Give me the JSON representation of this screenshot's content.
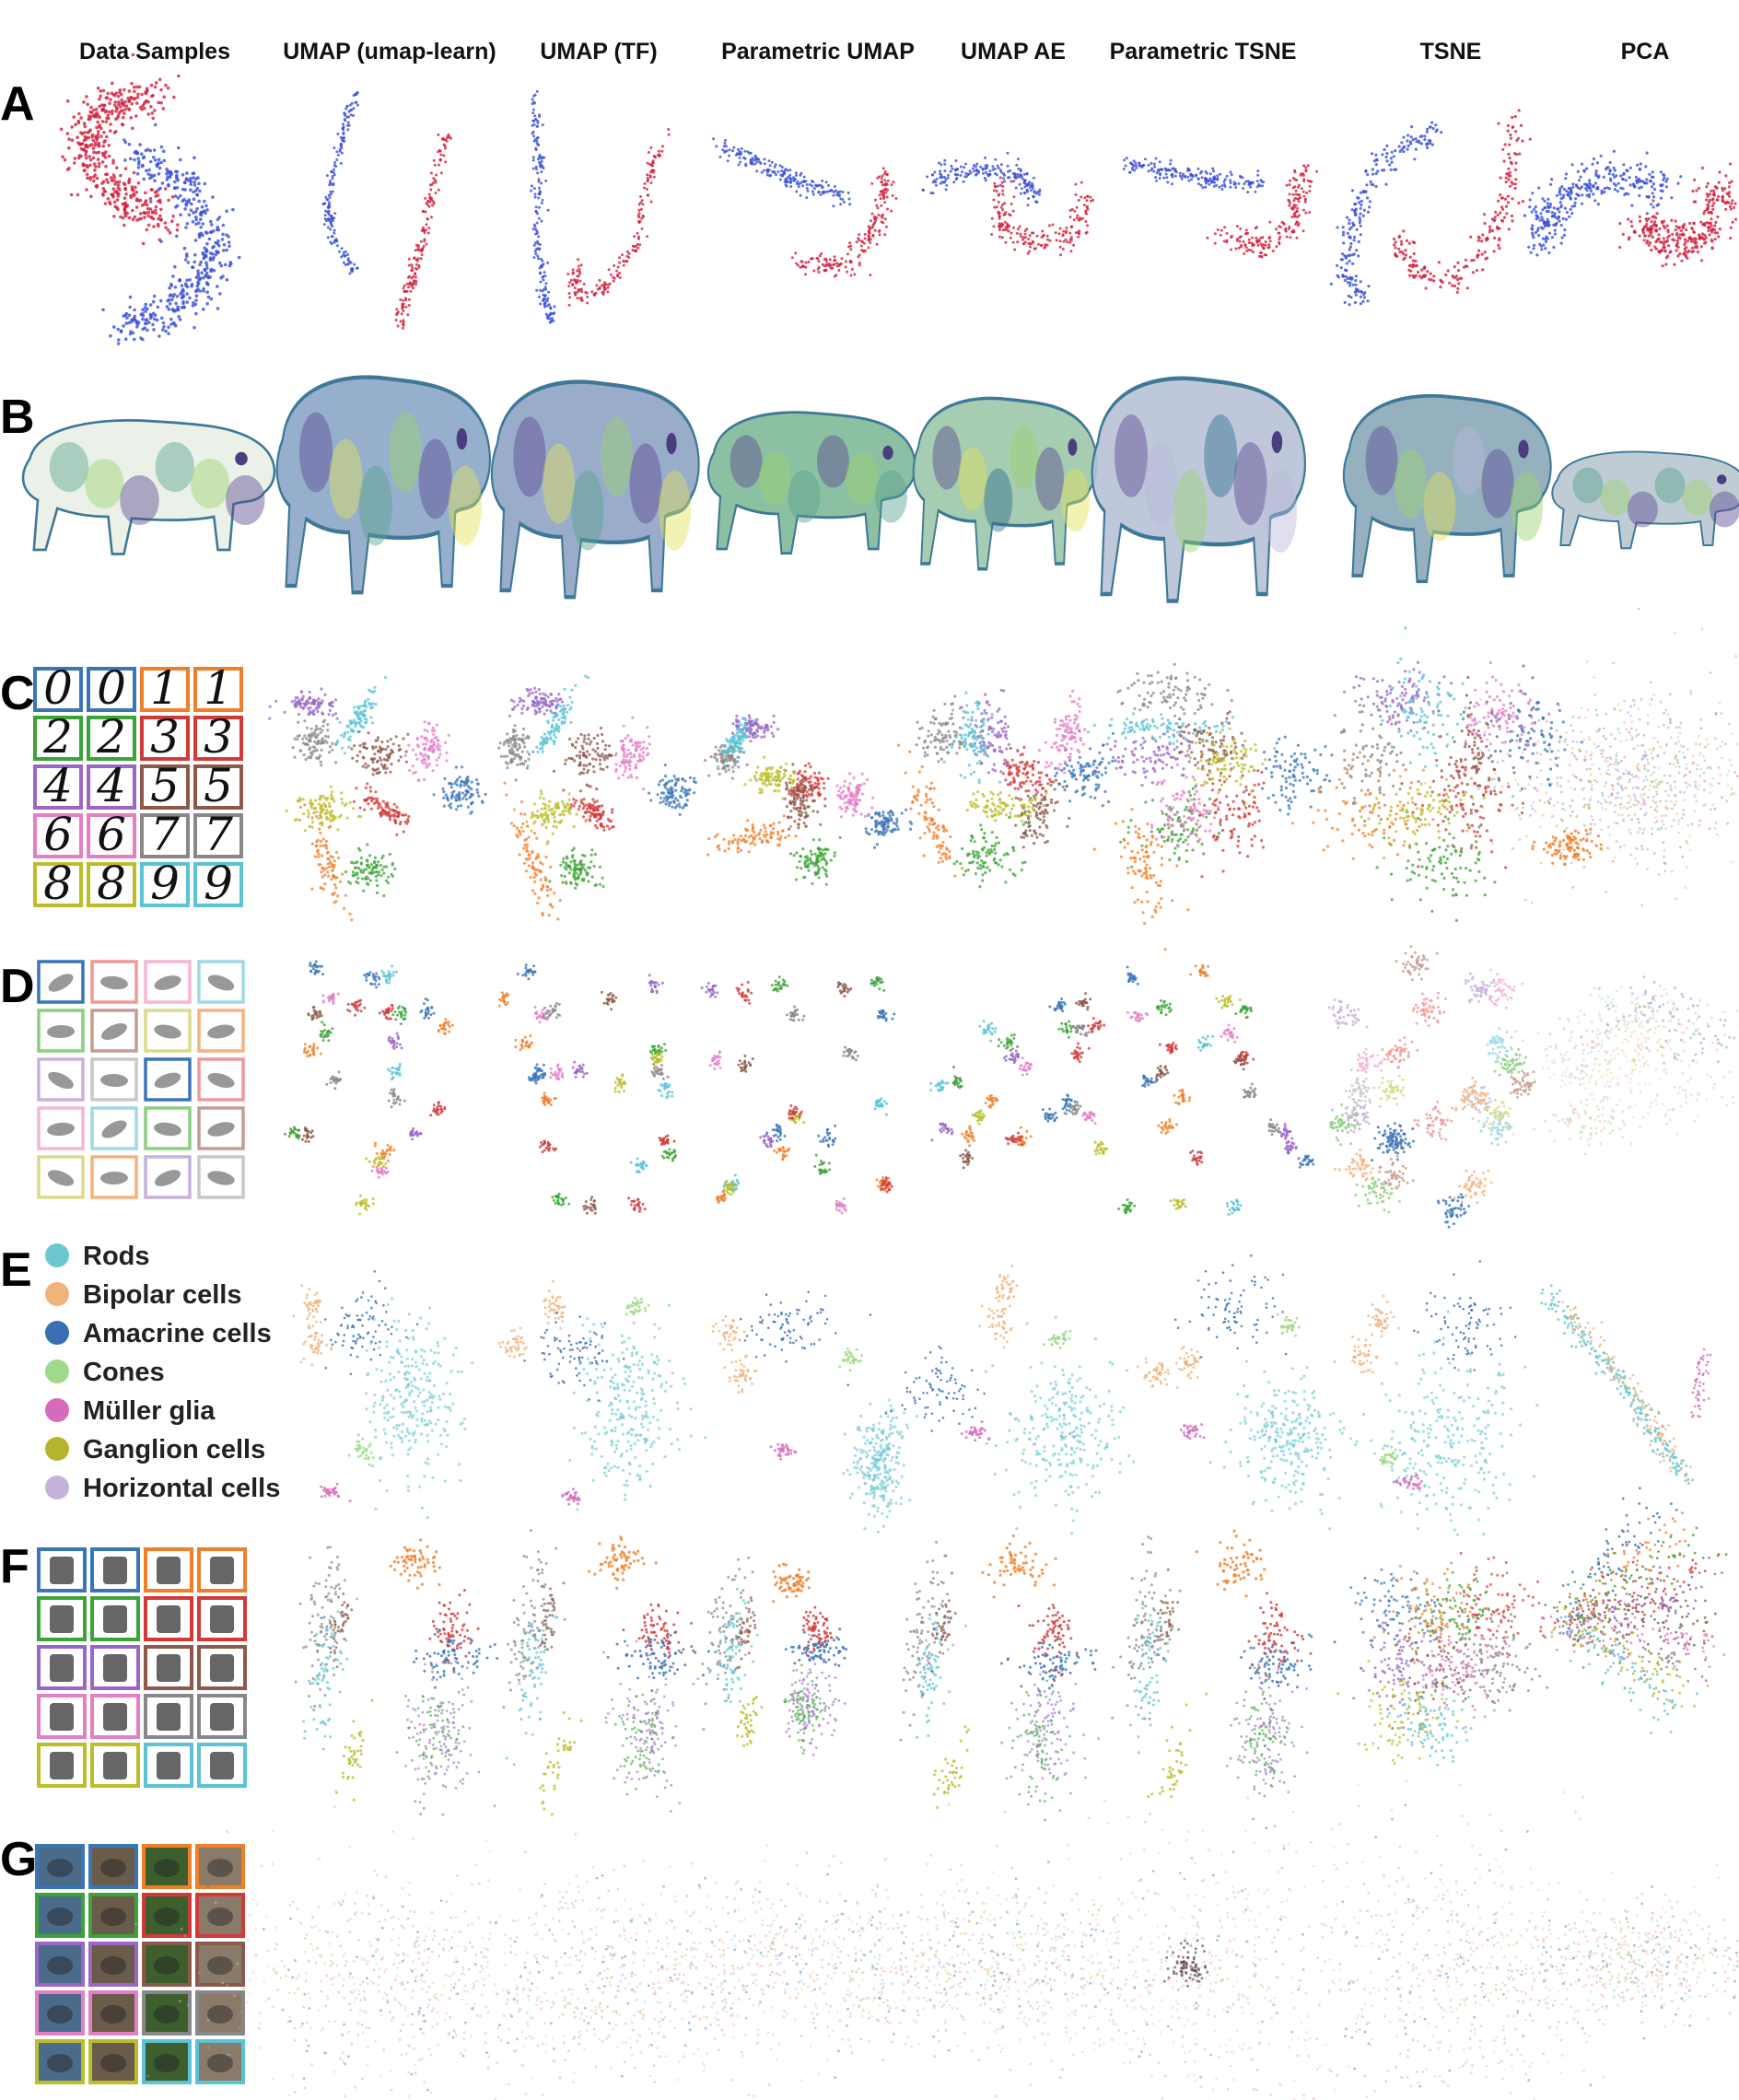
{
  "columns": [
    "Data Samples",
    "UMAP (umap-learn)",
    "UMAP (TF)",
    "Parametric UMAP",
    "UMAP AE",
    "Parametric TSNE",
    "TSNE",
    "PCA"
  ],
  "rows": [
    "A",
    "B",
    "C",
    "D",
    "E",
    "F",
    "G"
  ],
  "legend_e": [
    {
      "label": "Rods",
      "color": "#6cc7d3"
    },
    {
      "label": "Bipolar cells",
      "color": "#f2b27c"
    },
    {
      "label": "Amacrine cells",
      "color": "#3a6fb3"
    },
    {
      "label": "Cones",
      "color": "#9fd98a"
    },
    {
      "label": "Müller glia",
      "color": "#d66bbd"
    },
    {
      "label": "Ganglion cells",
      "color": "#b7b52f"
    },
    {
      "label": "Horizontal cells",
      "color": "#c6b1dc"
    }
  ],
  "mnist_digits": [
    "0",
    "0",
    "1",
    "1",
    "2",
    "2",
    "3",
    "3",
    "4",
    "4",
    "5",
    "5",
    "6",
    "6",
    "7",
    "7",
    "8",
    "8",
    "9",
    "9"
  ],
  "palette": [
    "#3a75b8",
    "#f07f2a",
    "#3ca337",
    "#d23a3a",
    "#9a67c6",
    "#8b5a4b",
    "#e47fc6",
    "#888888",
    "#bcbd2a",
    "#5bc3d6"
  ],
  "palette_light": [
    "#3a75b8",
    "#f5b27d",
    "#8bd07f",
    "#f09898",
    "#c7b2dc",
    "#c59c92",
    "#f4b6d5",
    "#c8c8c8",
    "#dbdb8c",
    "#9fd9e6"
  ],
  "moons_colors": {
    "blue": "#3a4fd6",
    "red": "#d21f3c"
  },
  "bison_colors": [
    "#2e6d8e",
    "#58a28d",
    "#9cd36f",
    "#e2e35a",
    "#5b4a93",
    "#b9b8d6"
  ],
  "g_image_colors": [
    "#4a6b8a",
    "#6b5b4a",
    "#3d5f2e",
    "#8a7a6a"
  ]
}
